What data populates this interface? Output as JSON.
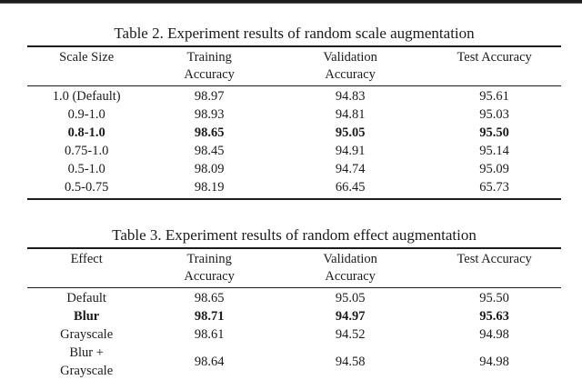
{
  "page": {
    "background_color": "#ffffff",
    "ink_color": "#1b1b1b",
    "top_border": true
  },
  "tables": [
    {
      "title": "Table 2. Experiment results of random scale augmentation",
      "headers": [
        [
          "Scale Size"
        ],
        [
          "Training",
          "Accuracy"
        ],
        [
          "Validation",
          "Accuracy"
        ],
        [
          "Test Accuracy"
        ]
      ],
      "rows": [
        {
          "cells": [
            [
              "1.0 (Default)"
            ],
            [
              "98.97"
            ],
            [
              "94.83"
            ],
            [
              "95.61"
            ]
          ],
          "bold": false
        },
        {
          "cells": [
            [
              "0.9-1.0"
            ],
            [
              "98.93"
            ],
            [
              "94.81"
            ],
            [
              "95.03"
            ]
          ],
          "bold": false
        },
        {
          "cells": [
            [
              "0.8-1.0"
            ],
            [
              "98.65"
            ],
            [
              "95.05"
            ],
            [
              "95.50"
            ]
          ],
          "bold": true
        },
        {
          "cells": [
            [
              "0.75-1.0"
            ],
            [
              "98.45"
            ],
            [
              "94.91"
            ],
            [
              "95.14"
            ]
          ],
          "bold": false
        },
        {
          "cells": [
            [
              "0.5-1.0"
            ],
            [
              "98.09"
            ],
            [
              "94.74"
            ],
            [
              "95.09"
            ]
          ],
          "bold": false
        },
        {
          "cells": [
            [
              "0.5-0.75"
            ],
            [
              "98.19"
            ],
            [
              "66.45"
            ],
            [
              "65.73"
            ]
          ],
          "bold": false
        }
      ]
    },
    {
      "title": "Table 3. Experiment results of random effect augmentation",
      "headers": [
        [
          "Effect"
        ],
        [
          "Training",
          "Accuracy"
        ],
        [
          "Validation",
          "Accuracy"
        ],
        [
          "Test Accuracy"
        ]
      ],
      "rows": [
        {
          "cells": [
            [
              "Default"
            ],
            [
              "98.65"
            ],
            [
              "95.05"
            ],
            [
              "95.50"
            ]
          ],
          "bold": false
        },
        {
          "cells": [
            [
              "Blur"
            ],
            [
              "98.71"
            ],
            [
              "94.97"
            ],
            [
              "95.63"
            ]
          ],
          "bold": true
        },
        {
          "cells": [
            [
              "Grayscale"
            ],
            [
              "98.61"
            ],
            [
              "94.52"
            ],
            [
              "94.98"
            ]
          ],
          "bold": false
        },
        {
          "cells": [
            [
              "Blur +",
              "Grayscale"
            ],
            [
              "98.64"
            ],
            [
              "94.58"
            ],
            [
              "94.98"
            ]
          ],
          "bold": false
        }
      ]
    }
  ],
  "chart_data": [
    {
      "type": "table",
      "title": "Table 2. Experiment results of random scale augmentation",
      "columns": [
        "Scale Size",
        "Training Accuracy",
        "Validation Accuracy",
        "Test Accuracy"
      ],
      "rows": [
        [
          "1.0 (Default)",
          98.97,
          94.83,
          95.61
        ],
        [
          "0.9-1.0",
          98.93,
          94.81,
          95.03
        ],
        [
          "0.8-1.0",
          98.65,
          95.05,
          95.5
        ],
        [
          "0.75-1.0",
          98.45,
          94.91,
          95.14
        ],
        [
          "0.5-1.0",
          98.09,
          94.74,
          95.09
        ],
        [
          "0.5-0.75",
          98.19,
          66.45,
          65.73
        ]
      ],
      "bold_rows": [
        "0.8-1.0"
      ]
    },
    {
      "type": "table",
      "title": "Table 3. Experiment results of random effect augmentation",
      "columns": [
        "Effect",
        "Training Accuracy",
        "Validation Accuracy",
        "Test Accuracy"
      ],
      "rows": [
        [
          "Default",
          98.65,
          95.05,
          95.5
        ],
        [
          "Blur",
          98.71,
          94.97,
          95.63
        ],
        [
          "Grayscale",
          98.61,
          94.52,
          94.98
        ],
        [
          "Blur + Grayscale",
          98.64,
          94.58,
          94.98
        ]
      ],
      "bold_rows": [
        "Blur"
      ]
    }
  ]
}
